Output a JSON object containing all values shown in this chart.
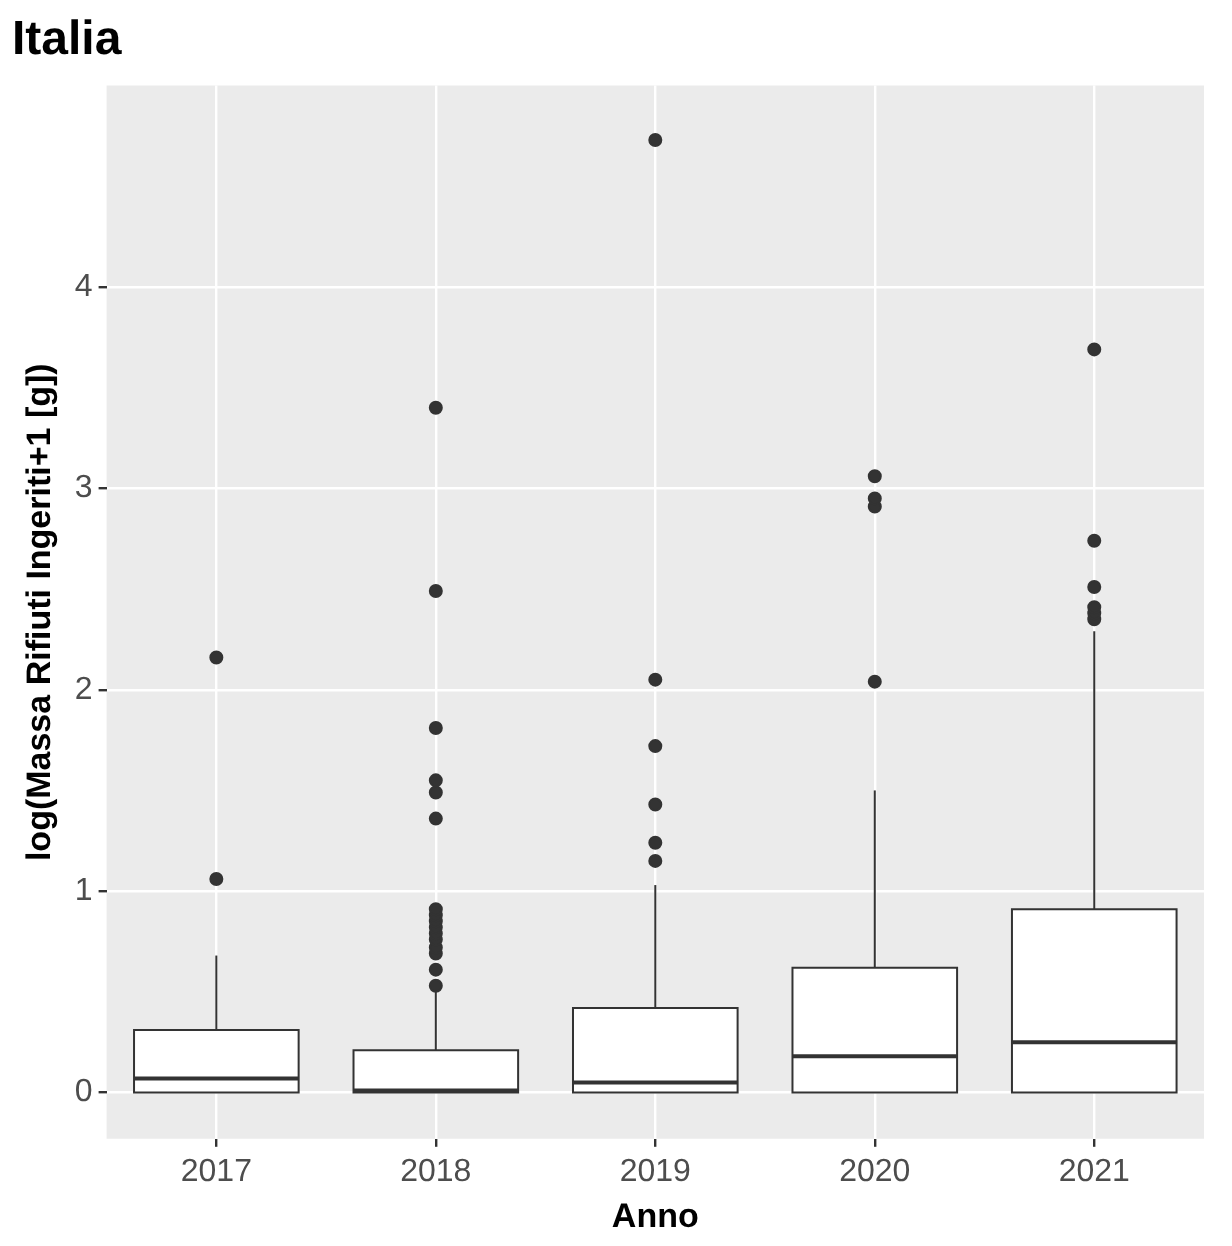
{
  "chart_data": {
    "type": "box",
    "title": "Italia",
    "xlabel": "Anno",
    "ylabel": "log(Massa Rifiuti Ingeriti+1 [g])",
    "categories": [
      "2017",
      "2018",
      "2019",
      "2020",
      "2021"
    ],
    "boxes": [
      {
        "low": 0,
        "q1": 0,
        "median": 0.07,
        "q3": 0.31,
        "high": 0.68,
        "outliers": [
          1.06,
          2.16
        ]
      },
      {
        "low": 0,
        "q1": 0,
        "median": 0.01,
        "q3": 0.21,
        "high": 0.5,
        "outliers": [
          0.53,
          0.61,
          0.69,
          0.72,
          0.76,
          0.79,
          0.82,
          0.85,
          0.88,
          0.91,
          1.36,
          1.49,
          1.55,
          1.81,
          2.49,
          3.4
        ]
      },
      {
        "low": 0,
        "q1": 0,
        "median": 0.05,
        "q3": 0.42,
        "high": 1.03,
        "outliers": [
          1.15,
          1.24,
          1.43,
          1.72,
          2.05,
          4.73
        ]
      },
      {
        "low": 0,
        "q1": 0,
        "median": 0.18,
        "q3": 0.62,
        "high": 1.5,
        "outliers": [
          2.04,
          2.91,
          2.95,
          3.06
        ]
      },
      {
        "low": 0,
        "q1": 0,
        "median": 0.25,
        "q3": 0.91,
        "high": 2.29,
        "outliers": [
          2.35,
          2.38,
          2.41,
          2.51,
          2.74,
          3.69
        ]
      }
    ],
    "ylim": [
      -0.23,
      5.0
    ],
    "yticks": [
      0,
      1,
      2,
      3,
      4
    ],
    "grid": true
  }
}
